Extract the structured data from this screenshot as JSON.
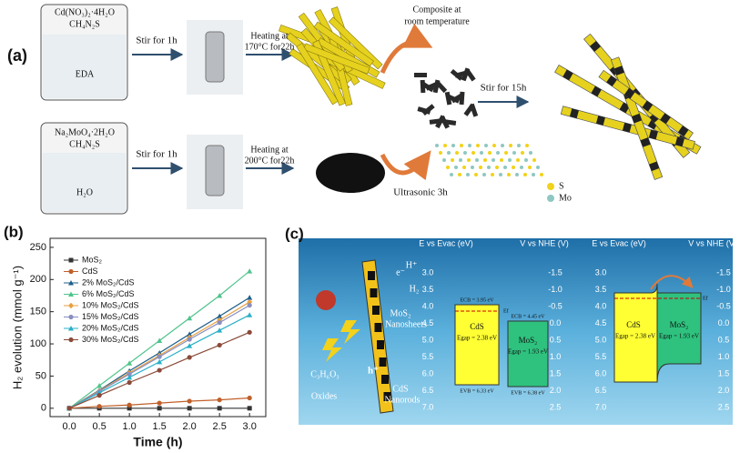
{
  "panel_labels": [
    "(a)",
    "(b)",
    "(c)"
  ],
  "scheme": {
    "top_beaker": {
      "reagents": [
        "Cd(NO₃)₂·4H₂O",
        "CH₄N₂S"
      ],
      "solvent": "EDA"
    },
    "bottom_beaker": {
      "reagents": [
        "Na₂MoO₄·2H₂O",
        "CH₄N₂S"
      ],
      "solvent": "H₂O"
    },
    "top_steps": [
      "Stir for 1h",
      "Heating at",
      "170°C for22h"
    ],
    "bottom_steps": [
      "Stir for 1h",
      "Heating at",
      "200°C for22h"
    ],
    "composite": [
      "Composite at",
      "room temperature"
    ],
    "final_step": "Stir for 15h",
    "ultrasonic": "Ultrasonic 3h",
    "legend": [
      "S",
      "Mo"
    ]
  },
  "chart_data": {
    "type": "line",
    "x_label": "Time (h)",
    "y_label": "H₂ evolution (mmol g⁻¹)",
    "x": [
      0,
      0.5,
      1,
      1.5,
      2,
      2.5,
      3
    ],
    "xlim": [
      -0.32,
      3.27
    ],
    "ylim": [
      -13,
      264
    ],
    "xticks": [
      {
        "value": 0,
        "label": "0.0"
      },
      {
        "value": 0.5,
        "label": "0.5"
      },
      {
        "value": 1,
        "label": "1.0"
      },
      {
        "value": 1.5,
        "label": "1.5"
      },
      {
        "value": 2,
        "label": "2.0"
      },
      {
        "value": 2.5,
        "label": "2.5"
      },
      {
        "value": 3,
        "label": "3.0"
      }
    ],
    "yticks": [
      0,
      50,
      100,
      150,
      200,
      250
    ],
    "legend": "upper left",
    "series": [
      {
        "name": "MoS₂",
        "color": "#333333",
        "values": [
          0,
          0,
          0,
          0,
          0,
          0,
          0
        ]
      },
      {
        "name": "CdS",
        "color": "#c0602a",
        "values": [
          0,
          3,
          5,
          8,
          11,
          13,
          16
        ]
      },
      {
        "name": "2% MoS₂/CdS",
        "color": "#1f5f8b",
        "values": [
          0,
          28,
          58,
          86,
          115,
          143,
          172
        ]
      },
      {
        "name": "6% MoS₂/CdS",
        "color": "#4fc48c",
        "values": [
          0,
          35,
          70,
          105,
          140,
          175,
          213
        ]
      },
      {
        "name": "10% MoS₂/CdS",
        "color": "#e8a040",
        "values": [
          0,
          27,
          55,
          82,
          110,
          137,
          165
        ]
      },
      {
        "name": "15% MoS₂/CdS",
        "color": "#8a8fc0",
        "values": [
          0,
          26,
          53,
          80,
          107,
          133,
          160
        ]
      },
      {
        "name": "20% MoS₂/CdS",
        "color": "#2ab0c8",
        "values": [
          0,
          24,
          48,
          72,
          97,
          121,
          145
        ]
      },
      {
        "name": "30% MoS₂/CdS",
        "color": "#8b4a3a",
        "values": [
          0,
          20,
          40,
          59,
          79,
          98,
          118
        ]
      }
    ]
  },
  "band_diagram": {
    "illustration": {
      "h_plus": "H⁺",
      "electron": "e⁻",
      "h2": "H₂",
      "mos2": [
        "MoS₂",
        "Nanosheets"
      ],
      "hole": "h⁺",
      "lactic": "C₃H₆O₃",
      "oxides": "Oxides",
      "cds": [
        "CdS",
        "Nanorods"
      ]
    },
    "left_axis_title": "E vs Evac (eV)",
    "right_axis_title": "V vs NHE (V)",
    "left_ticks": [
      "3.0",
      "3.5",
      "4.0",
      "4.5",
      "5.0",
      "5.5",
      "6.0",
      "6.5",
      "7.0"
    ],
    "right_ticks": [
      "-1.5",
      "-1.0",
      "-0.5",
      "0.0",
      "0.5",
      "1.0",
      "1.5",
      "2.0",
      "2.5"
    ],
    "cds": {
      "name": "CdS",
      "cb": "ECB = 3.95 eV",
      "gap": "Egap = 2.38 eV",
      "vb": "EVB = 6.33 eV"
    },
    "mos2": {
      "name": "MoS₂",
      "cb": "ECB = 4.45 eV",
      "gap": "Egap = 1.93 eV",
      "vb": "EVB = 6.38 eV"
    },
    "fermi": "Ef"
  }
}
